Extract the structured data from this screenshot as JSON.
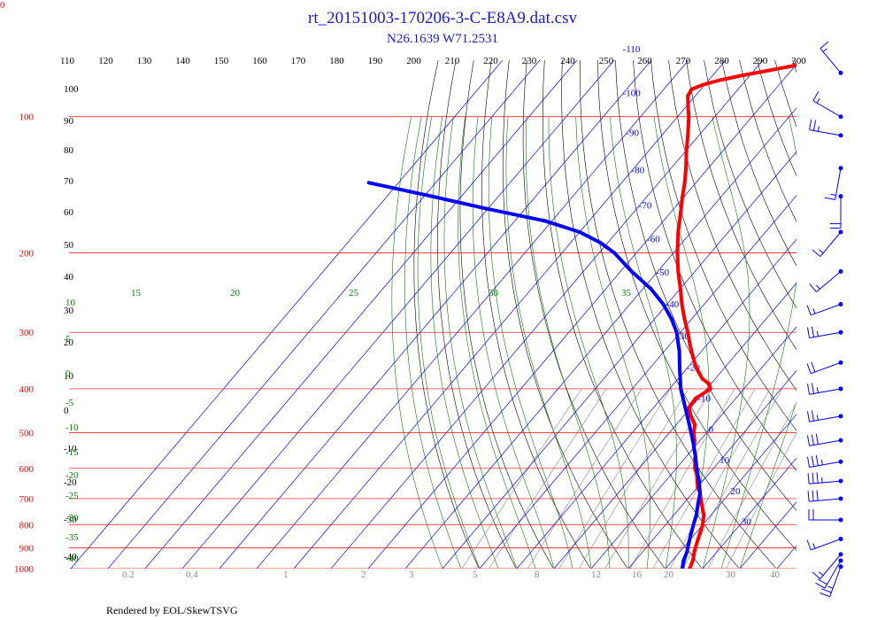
{
  "title": "rt_20151003-170206-3-C-E8A9.dat.csv",
  "subtitle": "N26.1639 W71.2531",
  "footer": "Rendered by EOL/SkewTSVG",
  "corner_label": "0",
  "colors": {
    "isobar": "#ff0000",
    "isotherm": "#0000ff",
    "dry_adiabat": "#000000",
    "moist_adiabat": "#008000",
    "mixing_ratio": "#888888",
    "temperature": "#ff0000",
    "dewpoint": "#0000ff",
    "wind": "#0000ff",
    "title": "#1a1acc"
  },
  "chart_data": {
    "type": "skew-t",
    "grid": true,
    "pressure_levels": [
      100,
      200,
      300,
      400,
      500,
      600,
      700,
      800,
      900,
      1000
    ],
    "top_temperature_ticks": [
      110,
      120,
      130,
      140,
      150,
      160,
      170,
      180,
      190,
      200,
      210,
      220,
      230,
      240,
      250,
      260,
      270,
      280,
      290,
      300
    ],
    "isotherm_labels": [
      -110,
      -100,
      -90,
      -80,
      -70,
      -60,
      -50,
      -40,
      -30,
      -20,
      -10,
      0,
      10,
      20,
      30
    ],
    "left_dry_adiabat_labels": [
      "100",
      "90",
      "80",
      "70",
      "60",
      "50",
      "40",
      "30",
      "20",
      "10",
      "0",
      "-10",
      "-20",
      "-30",
      "-40"
    ],
    "moist_adiabat_labels": [
      "15",
      "20",
      "25",
      "30",
      "35"
    ],
    "left_moist_labels": [
      "10",
      "5",
      "0",
      "-5",
      "-10",
      "-15",
      "-20",
      "-25",
      "-30",
      "-35",
      "-40"
    ],
    "mixing_ratio_labels": [
      "0.2",
      "0.4",
      "1",
      "2",
      "3",
      "5",
      "8",
      "12",
      "16",
      "20",
      "30",
      "40"
    ],
    "temperature_profile": [
      {
        "p": 1000,
        "t": 26.5
      },
      {
        "p": 960,
        "t": 25.5
      },
      {
        "p": 930,
        "t": 24.4
      },
      {
        "p": 900,
        "t": 23.3
      },
      {
        "p": 860,
        "t": 22.0
      },
      {
        "p": 830,
        "t": 21.0
      },
      {
        "p": 800,
        "t": 20.0
      },
      {
        "p": 780,
        "t": 19.0
      },
      {
        "p": 760,
        "t": 18.0
      },
      {
        "p": 740,
        "t": 16.5
      },
      {
        "p": 720,
        "t": 15.0
      },
      {
        "p": 700,
        "t": 13.5
      },
      {
        "p": 680,
        "t": 12.0
      },
      {
        "p": 660,
        "t": 10.0
      },
      {
        "p": 640,
        "t": 8.5
      },
      {
        "p": 620,
        "t": 7.0
      },
      {
        "p": 600,
        "t": 5.0
      },
      {
        "p": 580,
        "t": 3.5
      },
      {
        "p": 560,
        "t": 2.0
      },
      {
        "p": 540,
        "t": 0.0
      },
      {
        "p": 520,
        "t": -1.5
      },
      {
        "p": 500,
        "t": -3.5
      },
      {
        "p": 480,
        "t": -5.0
      },
      {
        "p": 460,
        "t": -8.0
      },
      {
        "p": 440,
        "t": -10.5
      },
      {
        "p": 420,
        "t": -10.8
      },
      {
        "p": 400,
        "t": -9.0
      },
      {
        "p": 390,
        "t": -10.5
      },
      {
        "p": 380,
        "t": -13.5
      },
      {
        "p": 360,
        "t": -17.5
      },
      {
        "p": 340,
        "t": -21.0
      },
      {
        "p": 320,
        "t": -24.5
      },
      {
        "p": 300,
        "t": -28.0
      },
      {
        "p": 280,
        "t": -32.0
      },
      {
        "p": 260,
        "t": -36.0
      },
      {
        "p": 240,
        "t": -40.0
      },
      {
        "p": 220,
        "t": -44.5
      },
      {
        "p": 200,
        "t": -49.0
      },
      {
        "p": 180,
        "t": -53.5
      },
      {
        "p": 160,
        "t": -58.0
      },
      {
        "p": 150,
        "t": -60.5
      },
      {
        "p": 140,
        "t": -63.0
      },
      {
        "p": 130,
        "t": -66.0
      },
      {
        "p": 120,
        "t": -69.5
      },
      {
        "p": 110,
        "t": -73.0
      },
      {
        "p": 100,
        "t": -77.0
      },
      {
        "p": 95,
        "t": -79.5
      },
      {
        "p": 90,
        "t": -82.0
      },
      {
        "p": 87,
        "t": -82.5
      },
      {
        "p": 85,
        "t": -80.5
      },
      {
        "p": 83,
        "t": -77.0
      },
      {
        "p": 81,
        "t": -72.0
      },
      {
        "p": 79,
        "t": -66.0
      },
      {
        "p": 77,
        "t": -60.0
      },
      {
        "p": 76,
        "t": -56.0
      }
    ],
    "dewpoint_profile": [
      {
        "p": 1000,
        "t": 24.5
      },
      {
        "p": 960,
        "t": 23.0
      },
      {
        "p": 920,
        "t": 22.0
      },
      {
        "p": 880,
        "t": 20.5
      },
      {
        "p": 840,
        "t": 19.0
      },
      {
        "p": 800,
        "t": 17.5
      },
      {
        "p": 760,
        "t": 16.0
      },
      {
        "p": 720,
        "t": 14.0
      },
      {
        "p": 680,
        "t": 12.0
      },
      {
        "p": 640,
        "t": 9.0
      },
      {
        "p": 600,
        "t": 5.5
      },
      {
        "p": 560,
        "t": 2.0
      },
      {
        "p": 520,
        "t": -2.0
      },
      {
        "p": 480,
        "t": -6.5
      },
      {
        "p": 440,
        "t": -11.5
      },
      {
        "p": 400,
        "t": -17.0
      },
      {
        "p": 360,
        "t": -22.0
      },
      {
        "p": 330,
        "t": -26.0
      },
      {
        "p": 300,
        "t": -31.0
      },
      {
        "p": 280,
        "t": -35.5
      },
      {
        "p": 260,
        "t": -41.0
      },
      {
        "p": 240,
        "t": -48.0
      },
      {
        "p": 220,
        "t": -57.0
      },
      {
        "p": 200,
        "t": -66.0
      },
      {
        "p": 190,
        "t": -72.0
      },
      {
        "p": 180,
        "t": -80.0
      },
      {
        "p": 170,
        "t": -92.0
      },
      {
        "p": 160,
        "t": -110.0
      },
      {
        "p": 150,
        "t": -128.0
      },
      {
        "p": 140,
        "t": -148.0
      }
    ],
    "wind_barbs": [
      {
        "p": 80,
        "speed_kt": 15,
        "dir": 320
      },
      {
        "p": 100,
        "speed_kt": 15,
        "dir": 300
      },
      {
        "p": 110,
        "speed_kt": 25,
        "dir": 280
      },
      {
        "p": 130,
        "speed_kt": 15,
        "dir": 190
      },
      {
        "p": 150,
        "speed_kt": 20,
        "dir": 180
      },
      {
        "p": 180,
        "speed_kt": 15,
        "dir": 220
      },
      {
        "p": 220,
        "speed_kt": 15,
        "dir": 230
      },
      {
        "p": 260,
        "speed_kt": 15,
        "dir": 250
      },
      {
        "p": 300,
        "speed_kt": 25,
        "dir": 260
      },
      {
        "p": 350,
        "speed_kt": 20,
        "dir": 250
      },
      {
        "p": 400,
        "speed_kt": 25,
        "dir": 260
      },
      {
        "p": 460,
        "speed_kt": 25,
        "dir": 260
      },
      {
        "p": 520,
        "speed_kt": 30,
        "dir": 260
      },
      {
        "p": 580,
        "speed_kt": 35,
        "dir": 260
      },
      {
        "p": 640,
        "speed_kt": 35,
        "dir": 265
      },
      {
        "p": 700,
        "speed_kt": 30,
        "dir": 265
      },
      {
        "p": 780,
        "speed_kt": 20,
        "dir": 270
      },
      {
        "p": 860,
        "speed_kt": 15,
        "dir": 250
      },
      {
        "p": 930,
        "speed_kt": 15,
        "dir": 220
      },
      {
        "p": 960,
        "speed_kt": 20,
        "dir": 210
      },
      {
        "p": 990,
        "speed_kt": 25,
        "dir": 200
      }
    ]
  }
}
